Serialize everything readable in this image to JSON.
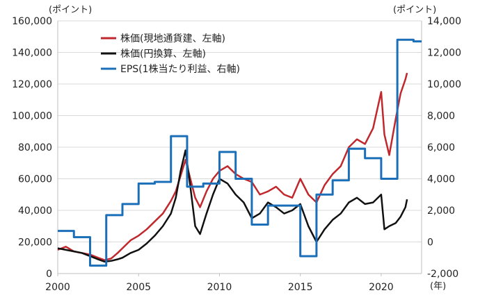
{
  "chart_data": {
    "type": "line",
    "title": "",
    "xlabel": "(年)",
    "ylabel_left": "(ポイント)",
    "ylabel_right": "(ポイント)",
    "x_ticks": [
      2000,
      2005,
      2010,
      2015,
      2020
    ],
    "xlim": [
      2000,
      2022.5
    ],
    "y_left": {
      "min": 0,
      "max": 160000,
      "step": 20000,
      "ticks": [
        "0",
        "20,000",
        "40,000",
        "60,000",
        "80,000",
        "100,000",
        "120,000",
        "140,000",
        "160,000"
      ]
    },
    "y_right": {
      "min": -2000,
      "max": 14000,
      "step": 2000,
      "ticks": [
        "-2,000",
        "0",
        "2,000",
        "4,000",
        "6,000",
        "8,000",
        "10,000",
        "12,000",
        "14,000"
      ]
    },
    "grid": true,
    "legend_position": "top-center",
    "series": [
      {
        "name": "株価(現地通貨建、左軸)",
        "axis": "left",
        "color": "#C0282D",
        "x": [
          2000.0,
          2000.5,
          2001.0,
          2001.5,
          2002.0,
          2002.5,
          2002.9,
          2003.3,
          2003.7,
          2004.0,
          2004.5,
          2005.0,
          2005.5,
          2006.0,
          2006.5,
          2007.0,
          2007.3,
          2007.6,
          2007.9,
          2008.2,
          2008.5,
          2008.8,
          2009.2,
          2009.6,
          2010.0,
          2010.5,
          2011.0,
          2011.5,
          2012.0,
          2012.5,
          2013.0,
          2013.5,
          2014.0,
          2014.5,
          2015.0,
          2015.5,
          2016.0,
          2016.5,
          2017.0,
          2017.5,
          2018.0,
          2018.5,
          2019.0,
          2019.5,
          2020.0,
          2020.2,
          2020.5,
          2020.9,
          2021.2,
          2021.5,
          2021.6
        ],
        "values": [
          15000,
          17000,
          14000,
          13000,
          12000,
          10000,
          8500,
          9500,
          13000,
          16000,
          21000,
          24000,
          28000,
          33000,
          38000,
          46000,
          52000,
          62000,
          72000,
          60000,
          48000,
          42000,
          52000,
          60000,
          65000,
          68000,
          63000,
          60000,
          58000,
          50000,
          52000,
          55000,
          50000,
          48000,
          60000,
          50000,
          45000,
          56000,
          63000,
          68000,
          80000,
          85000,
          82000,
          92000,
          115000,
          88000,
          75000,
          98000,
          114000,
          123000,
          127000
        ]
      },
      {
        "name": "株価(円換算、左軸)",
        "axis": "left",
        "color": "#111111",
        "x": [
          2000.0,
          2000.5,
          2001.0,
          2001.5,
          2002.0,
          2002.5,
          2002.9,
          2003.3,
          2003.7,
          2004.0,
          2004.5,
          2005.0,
          2005.5,
          2006.0,
          2006.5,
          2007.0,
          2007.3,
          2007.6,
          2007.9,
          2008.2,
          2008.5,
          2008.8,
          2009.2,
          2009.6,
          2010.0,
          2010.5,
          2011.0,
          2011.5,
          2012.0,
          2012.5,
          2013.0,
          2013.5,
          2014.0,
          2014.5,
          2015.0,
          2015.5,
          2016.0,
          2016.5,
          2017.0,
          2017.5,
          2018.0,
          2018.5,
          2019.0,
          2019.5,
          2020.0,
          2020.2,
          2020.5,
          2020.9,
          2021.2,
          2021.5,
          2021.6
        ],
        "values": [
          16000,
          15000,
          14000,
          13000,
          11000,
          9000,
          7500,
          8000,
          9000,
          10000,
          13000,
          15000,
          19000,
          24000,
          30000,
          38000,
          48000,
          65000,
          78000,
          55000,
          30000,
          25000,
          38000,
          50000,
          60000,
          57000,
          50000,
          45000,
          35000,
          38000,
          45000,
          42000,
          38000,
          40000,
          44000,
          30000,
          20000,
          28000,
          34000,
          38000,
          45000,
          48000,
          44000,
          45000,
          50000,
          28000,
          30000,
          32000,
          36000,
          42000,
          47000
        ]
      },
      {
        "name": "EPS(1株当たり利益、右軸)",
        "axis": "right",
        "color": "#1B6FB8",
        "step": true,
        "x": [
          2000.0,
          2001.0,
          2002.0,
          2003.0,
          2004.0,
          2005.0,
          2006.0,
          2007.0,
          2008.0,
          2009.0,
          2010.0,
          2011.0,
          2012.0,
          2013.0,
          2014.0,
          2015.0,
          2016.0,
          2017.0,
          2018.0,
          2019.0,
          2020.0,
          2021.0,
          2022.0,
          2022.5
        ],
        "values": [
          700,
          300,
          -1500,
          1700,
          2400,
          3700,
          3800,
          6700,
          3500,
          3700,
          5700,
          4000,
          1100,
          2300,
          2300,
          -900,
          3000,
          3900,
          5900,
          5300,
          4000,
          12800,
          12700,
          12700
        ]
      }
    ]
  }
}
